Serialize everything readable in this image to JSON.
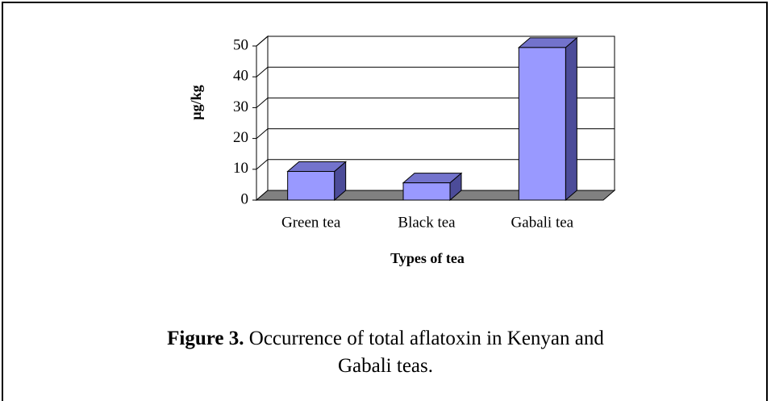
{
  "chart_data": {
    "type": "bar3d",
    "categories": [
      "Green tea",
      "Black tea",
      "Gabali tea"
    ],
    "values": [
      9.3,
      5.6,
      49.5
    ],
    "color": "#9999ff",
    "ylim": [
      0,
      50
    ],
    "yticks": [
      0,
      10,
      20,
      30,
      40,
      50
    ],
    "grid": true,
    "ylabel": "µg/kg",
    "xlabel": "Types of tea",
    "caption_label": "Figure 3.",
    "caption": "Occurrence of total aflatoxin in Kenyan and Gabali teas."
  }
}
